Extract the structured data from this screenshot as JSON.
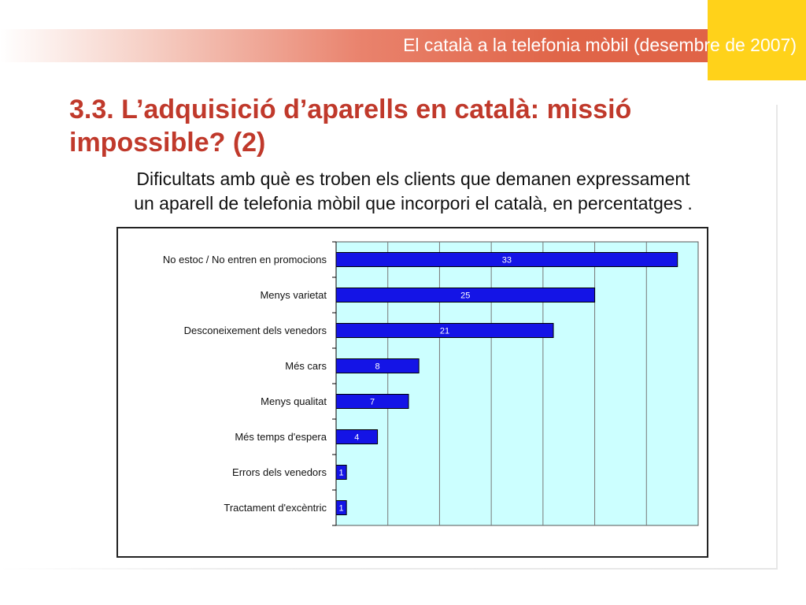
{
  "header": {
    "title": "El català a la telefonia mòbil (desembre de 2007)"
  },
  "slide": {
    "title_line1": "3.3. L’adquisició d’aparells en català: missió",
    "title_line2": "impossible? (2)",
    "subtitle_line1": "Dificultats amb què es troben els clients que demanen expressament",
    "subtitle_line2": "un aparell de telefonia mòbil que incorpori el català, en percentatges ."
  },
  "colors": {
    "bar_fill": "#1414e6",
    "plot_background": "#ccffff",
    "title": "#c0392b",
    "accent_yellow": "#ffd21a",
    "header_red": "#df6246"
  },
  "chart_data": {
    "type": "bar",
    "orientation": "horizontal",
    "categories": [
      "No estoc / No entren en promocions",
      "Menys varietat",
      "Desconeixement dels venedors",
      "Més cars",
      "Menys qualitat",
      "Més temps d'espera",
      "Errors dels venedors",
      "Tractament d'excèntric"
    ],
    "values": [
      33,
      25,
      21,
      8,
      7,
      4,
      1,
      1
    ],
    "xlim": [
      0,
      35
    ],
    "grid": true,
    "data_labels": true
  }
}
